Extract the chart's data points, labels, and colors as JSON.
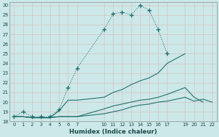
{
  "xlabel": "Humidex (Indice chaleur)",
  "bg_color": "#cce8e8",
  "grid_color": "#b8d8d8",
  "line_color": "#1a6b6b",
  "xlim": [
    -0.5,
    22.5
  ],
  "ylim": [
    18,
    30.3
  ],
  "xticks": [
    0,
    1,
    2,
    3,
    4,
    5,
    6,
    7,
    10,
    11,
    12,
    13,
    14,
    15,
    16,
    17,
    19,
    20,
    21,
    22
  ],
  "yticks": [
    18,
    19,
    20,
    21,
    22,
    23,
    24,
    25,
    26,
    27,
    28,
    29,
    30
  ],
  "series": [
    {
      "x": [
        0,
        1,
        2,
        3,
        4,
        5,
        6,
        7,
        10,
        11,
        12,
        13,
        14,
        15,
        16,
        17
      ],
      "y": [
        18.5,
        19.0,
        18.5,
        18.5,
        18.5,
        19.2,
        21.5,
        23.5,
        27.5,
        29.1,
        29.3,
        29.0,
        30.0,
        29.5,
        27.5,
        25.0
      ]
    },
    {
      "x": [
        0,
        1,
        2,
        3,
        4,
        5,
        6,
        7,
        10,
        11,
        12,
        13,
        14,
        15,
        16,
        17,
        19
      ],
      "y": [
        18.5,
        18.5,
        18.4,
        18.4,
        18.4,
        19.1,
        20.2,
        20.2,
        20.5,
        21.0,
        21.3,
        21.8,
        22.2,
        22.5,
        23.0,
        24.0,
        25.0
      ]
    },
    {
      "x": [
        0,
        1,
        2,
        3,
        4,
        5,
        6,
        7,
        10,
        11,
        12,
        13,
        14,
        15,
        16,
        17,
        19,
        20,
        21
      ],
      "y": [
        18.5,
        18.5,
        18.4,
        18.4,
        18.4,
        18.5,
        18.5,
        18.5,
        19.3,
        19.6,
        19.8,
        20.0,
        20.2,
        20.3,
        20.5,
        20.8,
        21.5,
        20.5,
        20.0
      ]
    },
    {
      "x": [
        0,
        1,
        2,
        3,
        4,
        5,
        6,
        7,
        10,
        11,
        12,
        13,
        14,
        15,
        16,
        17,
        19,
        20,
        21,
        22
      ],
      "y": [
        18.5,
        18.5,
        18.4,
        18.4,
        18.4,
        18.5,
        18.5,
        18.5,
        18.8,
        19.0,
        19.2,
        19.5,
        19.7,
        19.8,
        20.0,
        20.1,
        20.5,
        20.1,
        20.3,
        20.0
      ]
    }
  ]
}
